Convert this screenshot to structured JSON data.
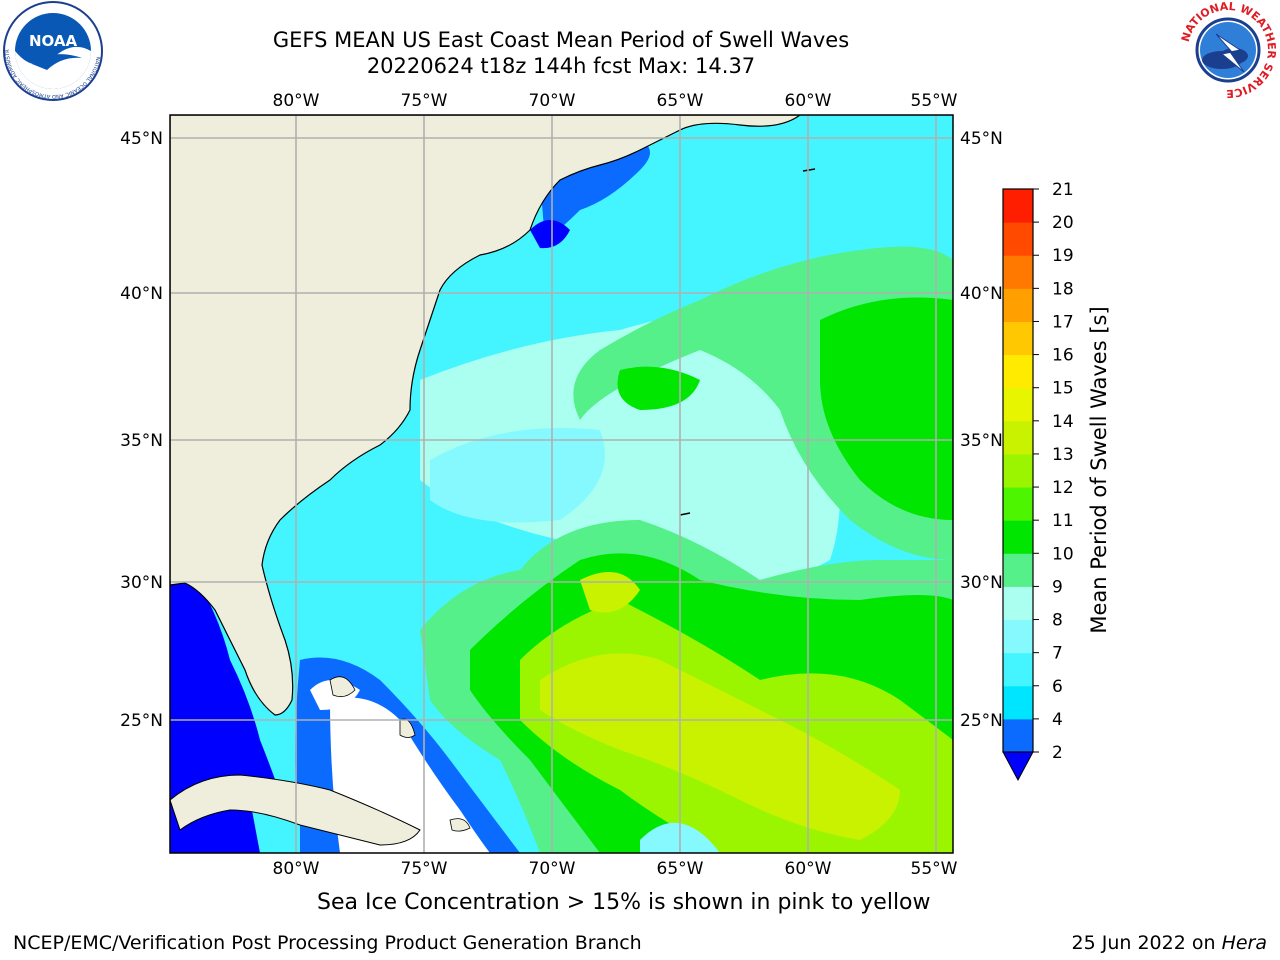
{
  "header": {
    "title_line1": "GEFS MEAN US East Coast Mean Period of Swell Waves",
    "title_line2": "20220624 t18z 144h fcst   Max: 14.37"
  },
  "logos": {
    "left": {
      "icon": "noaa-logo",
      "text": "NOAA",
      "ring_text": "NATIONAL OCEANIC AND ATMOSPHERIC ADMINISTRATION · U.S. DEPARTMENT OF COMMERCE"
    },
    "right": {
      "icon": "nws-logo",
      "ring_text": "NATIONAL WEATHER SERVICE"
    }
  },
  "map": {
    "lon_labels": [
      "80°W",
      "75°W",
      "70°W",
      "65°W",
      "60°W",
      "55°W"
    ],
    "lat_labels": [
      "45°N",
      "40°N",
      "35°N",
      "30°N",
      "25°N"
    ],
    "land_color": "#efeedc",
    "grid_color": "#b0b0b0"
  },
  "colorbar": {
    "label": "Mean Period of Swell Waves [s]",
    "ticks": [
      "2",
      "4",
      "6",
      "7",
      "8",
      "9",
      "10",
      "11",
      "12",
      "13",
      "14",
      "15",
      "16",
      "17",
      "18",
      "19",
      "20",
      "21"
    ],
    "colors": [
      "#0b6bff",
      "#00e5ff",
      "#44f5ff",
      "#86f9ff",
      "#aafff0",
      "#55f08a",
      "#00e600",
      "#4df500",
      "#9cf500",
      "#c8f200",
      "#e8f500",
      "#ffeb00",
      "#ffc800",
      "#ff9f00",
      "#ff7800",
      "#ff4a00",
      "#ff1e00"
    ],
    "under_color": "#0000ff"
  },
  "footer": {
    "sea_ice_note": "Sea Ice Concentration > 15% is shown in pink to yellow",
    "credit_left": "NCEP/EMC/Verification Post Processing Product Generation Branch",
    "credit_date": "25 Jun 2022 on ",
    "credit_machine": "Hera"
  }
}
